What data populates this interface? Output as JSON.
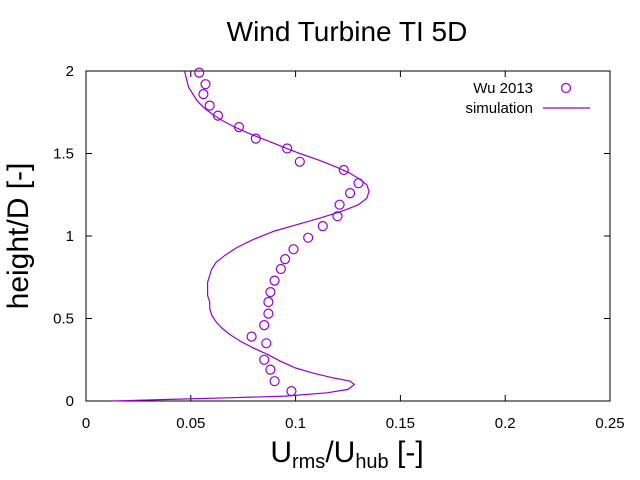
{
  "chart_data": {
    "type": "line",
    "title": "Wind Turbine TI 5D",
    "xlabel": {
      "base": "U",
      "sub1": "rms",
      "sep": "/U",
      "sub2": "hub",
      "suffix": " [-]"
    },
    "ylabel": "height/D [-]",
    "xlim": [
      0,
      0.25
    ],
    "ylim": [
      0,
      2
    ],
    "xticks": [
      0,
      0.05,
      0.1,
      0.15,
      0.2,
      0.25
    ],
    "xtick_labels": [
      "0",
      "0.05",
      "0.1",
      "0.15",
      "0.2",
      "0.25"
    ],
    "yticks": [
      0,
      0.5,
      1,
      1.5,
      2
    ],
    "ytick_labels": [
      "0",
      "0.5",
      "1",
      "1.5",
      "2"
    ],
    "grid": false,
    "legend_position": "top-right",
    "color": "#9400d3",
    "series": [
      {
        "name": "Wu 2013",
        "style": "points",
        "x": [
          0.098,
          0.09,
          0.088,
          0.085,
          0.086,
          0.079,
          0.085,
          0.087,
          0.087,
          0.088,
          0.09,
          0.093,
          0.095,
          0.099,
          0.106,
          0.113,
          0.12,
          0.121,
          0.126,
          0.13,
          0.123,
          0.102,
          0.096,
          0.081,
          0.073,
          0.063,
          0.059,
          0.056,
          0.057,
          0.054
        ],
        "y": [
          0.06,
          0.12,
          0.19,
          0.25,
          0.35,
          0.39,
          0.46,
          0.53,
          0.6,
          0.66,
          0.73,
          0.8,
          0.86,
          0.92,
          0.99,
          1.06,
          1.12,
          1.19,
          1.26,
          1.32,
          1.4,
          1.45,
          1.53,
          1.59,
          1.66,
          1.73,
          1.79,
          1.86,
          1.92,
          1.99
        ]
      },
      {
        "name": "simulation",
        "style": "line",
        "x": [
          0.012,
          0.04,
          0.07,
          0.095,
          0.115,
          0.125,
          0.128,
          0.126,
          0.118,
          0.108,
          0.1,
          0.093,
          0.087,
          0.08,
          0.074,
          0.069,
          0.065,
          0.062,
          0.06,
          0.059,
          0.059,
          0.058,
          0.058,
          0.058,
          0.059,
          0.06,
          0.062,
          0.066,
          0.072,
          0.08,
          0.09,
          0.101,
          0.112,
          0.122,
          0.13,
          0.134,
          0.135,
          0.134,
          0.131,
          0.126,
          0.119,
          0.111,
          0.102,
          0.094,
          0.086,
          0.078,
          0.071,
          0.065,
          0.06,
          0.056,
          0.053,
          0.051,
          0.049,
          0.048,
          0.047
        ],
        "y": [
          0.0,
          0.01,
          0.02,
          0.03,
          0.05,
          0.07,
          0.1,
          0.12,
          0.14,
          0.17,
          0.2,
          0.24,
          0.28,
          0.32,
          0.36,
          0.4,
          0.44,
          0.48,
          0.52,
          0.56,
          0.6,
          0.64,
          0.68,
          0.72,
          0.76,
          0.8,
          0.84,
          0.88,
          0.93,
          0.98,
          1.03,
          1.07,
          1.11,
          1.15,
          1.19,
          1.23,
          1.27,
          1.31,
          1.34,
          1.38,
          1.42,
          1.46,
          1.5,
          1.54,
          1.58,
          1.62,
          1.66,
          1.7,
          1.74,
          1.78,
          1.82,
          1.86,
          1.9,
          1.95,
          2.0
        ]
      }
    ]
  }
}
